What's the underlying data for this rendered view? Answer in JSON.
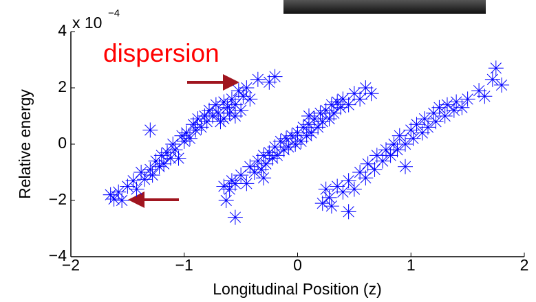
{
  "chart_data": {
    "type": "scatter",
    "xlabel": "Longitudinal Position (z)",
    "ylabel": "Relative energy",
    "y_multiplier": {
      "base": "x 10",
      "exponent": "−4"
    },
    "annotation": "dispersion",
    "color": "#0000ff",
    "marker": "asterisk",
    "xlim": [
      -2,
      2
    ],
    "ylim": [
      -4,
      4
    ],
    "xticks": [
      {
        "value": -2,
        "label": "−2"
      },
      {
        "value": -1,
        "label": "−1"
      },
      0,
      1,
      2
    ],
    "yticks": [
      {
        "value": -4,
        "label": "−4"
      },
      {
        "value": -2,
        "label": "−2"
      },
      0,
      2,
      4
    ],
    "x": [
      -1.65,
      -1.62,
      -1.58,
      -1.55,
      -1.5,
      -1.45,
      -1.42,
      -1.38,
      -1.35,
      -1.3,
      -1.28,
      -1.25,
      -1.22,
      -1.2,
      -1.18,
      -1.15,
      -1.12,
      -1.1,
      -1.08,
      -1.05,
      -1.02,
      -1.0,
      -0.98,
      -0.95,
      -0.92,
      -0.9,
      -0.88,
      -0.85,
      -0.82,
      -0.8,
      -0.78,
      -0.75,
      -0.72,
      -0.7,
      -0.68,
      -0.65,
      -0.62,
      -0.6,
      -0.58,
      -0.55,
      -0.52,
      -0.5,
      -0.48,
      -0.45,
      -0.42,
      -0.35,
      -0.25,
      -0.2,
      -1.3,
      -0.65,
      -0.55,
      -0.65,
      -0.63,
      -0.6,
      -0.58,
      -0.55,
      -0.55,
      -0.5,
      -0.45,
      -0.42,
      -0.38,
      -0.35,
      -0.32,
      -0.3,
      -0.28,
      -0.25,
      -0.22,
      -0.2,
      -0.18,
      -0.15,
      -0.12,
      -0.1,
      -0.08,
      -0.05,
      -0.02,
      0.0,
      0.03,
      0.05,
      0.08,
      0.1,
      0.12,
      0.15,
      0.18,
      0.2,
      0.22,
      0.25,
      0.28,
      0.3,
      0.32,
      0.35,
      0.38,
      0.4,
      0.45,
      0.5,
      0.55,
      0.6,
      0.65,
      -0.3,
      0.1,
      0.22,
      0.25,
      0.28,
      0.3,
      0.35,
      0.4,
      0.45,
      0.5,
      0.55,
      0.6,
      0.62,
      0.68,
      0.7,
      0.75,
      0.78,
      0.82,
      0.85,
      0.88,
      0.9,
      0.95,
      1.0,
      1.02,
      1.05,
      1.1,
      1.12,
      1.15,
      1.2,
      1.22,
      1.25,
      1.3,
      1.32,
      1.38,
      1.4,
      1.45,
      1.5,
      1.6,
      1.65,
      1.72,
      1.75,
      1.8,
      0.45,
      0.95
    ],
    "values": [
      -1.8,
      -1.95,
      -1.7,
      -2.0,
      -1.5,
      -1.3,
      -1.6,
      -1.0,
      -1.25,
      -0.9,
      -1.1,
      -0.6,
      -0.8,
      -0.4,
      -0.7,
      -0.3,
      -0.5,
      0.0,
      -0.2,
      -0.5,
      0.3,
      0.1,
      0.4,
      0.2,
      0.7,
      0.5,
      0.9,
      0.6,
      1.0,
      0.8,
      1.2,
      1.0,
      1.4,
      1.1,
      0.8,
      1.5,
      1.3,
      1.1,
      1.6,
      1.4,
      1.9,
      1.2,
      1.7,
      2.0,
      1.6,
      2.3,
      2.2,
      2.4,
      0.5,
      0.9,
      1.0,
      -1.5,
      -2.0,
      -1.6,
      -1.3,
      -2.6,
      -1.4,
      -1.1,
      -1.4,
      -0.8,
      -1.0,
      -0.6,
      -0.9,
      -0.4,
      -0.7,
      -0.3,
      -0.5,
      -0.1,
      -0.4,
      0.1,
      -0.2,
      0.2,
      -0.1,
      0.3,
      0.0,
      0.4,
      0.1,
      0.6,
      0.3,
      0.7,
      0.4,
      0.9,
      0.6,
      1.1,
      0.8,
      1.2,
      0.9,
      1.4,
      1.1,
      1.5,
      1.3,
      1.6,
      1.4,
      1.8,
      1.6,
      2.0,
      1.8,
      -1.2,
      1.0,
      -2.1,
      -1.6,
      -1.9,
      -2.2,
      -1.5,
      -1.7,
      -1.3,
      -1.6,
      -1.0,
      -1.2,
      -0.7,
      -0.9,
      -0.4,
      -0.6,
      -0.2,
      -0.4,
      0.0,
      -0.2,
      0.3,
      0.0,
      0.5,
      0.2,
      0.7,
      0.4,
      0.9,
      0.6,
      1.1,
      0.8,
      1.3,
      1.0,
      1.4,
      1.2,
      1.5,
      1.3,
      1.6,
      1.9,
      1.7,
      2.3,
      2.7,
      2.1,
      -2.4,
      -0.8
    ]
  }
}
